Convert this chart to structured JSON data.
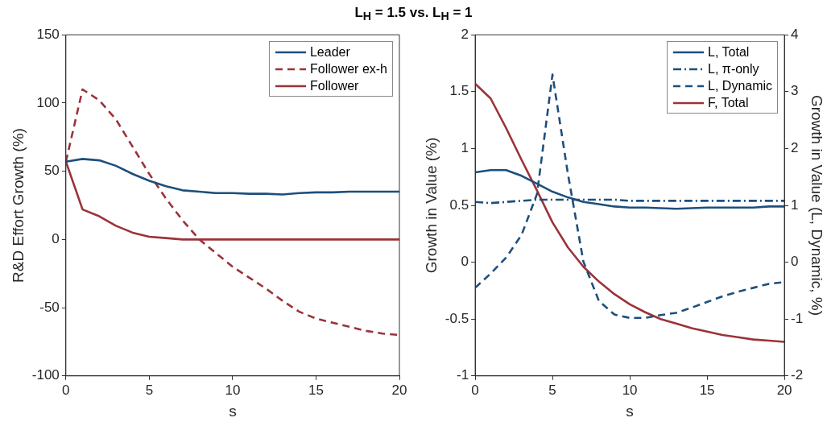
{
  "chart_data": [
    {
      "type": "line",
      "title": "L$_{H}$ = 1.5 vs. L$_{H}$ = 1",
      "xlabel": "s",
      "ylabel": "R&D Effort Growth (%)",
      "x": [
        0,
        1,
        2,
        3,
        4,
        5,
        6,
        7,
        8,
        9,
        10,
        11,
        12,
        13,
        14,
        15,
        16,
        17,
        18,
        19,
        20
      ],
      "xlim": [
        0,
        20
      ],
      "xticks": [
        0,
        5,
        10,
        15,
        20
      ],
      "ylim": [
        -100,
        150
      ],
      "yticks": [
        -100,
        -50,
        0,
        50,
        100,
        150
      ],
      "grid": false,
      "legend": "top right",
      "series": [
        {
          "name": "Leader",
          "color": "#1d4f7e",
          "line_style": "solid",
          "values": [
            57,
            59,
            58,
            54,
            48,
            43,
            39,
            36,
            35,
            34,
            34,
            33.5,
            33.5,
            33,
            34,
            34.5,
            34.5,
            35,
            35,
            35,
            35
          ]
        },
        {
          "name": "Follower ex-h",
          "color": "#9b3339",
          "line_style": "dashed",
          "values": [
            57,
            110,
            102,
            88,
            68,
            48,
            30,
            14,
            0,
            -10,
            -20,
            -28,
            -36,
            -45,
            -53,
            -58,
            -61,
            -64,
            -67,
            -69,
            -70
          ]
        },
        {
          "name": "Follower",
          "color": "#9b3339",
          "line_style": "solid",
          "values": [
            57,
            22,
            17,
            10,
            5,
            2,
            1,
            0,
            0,
            0,
            0,
            0,
            0,
            0,
            0,
            0,
            0,
            0,
            0,
            0,
            0
          ]
        }
      ]
    },
    {
      "type": "line",
      "xlabel": "s",
      "ylabel": "Growth in Value (%)",
      "y2label": "Growth in Value (L, Dynamic, %)",
      "x": [
        0,
        1,
        2,
        3,
        4,
        5,
        6,
        7,
        8,
        9,
        10,
        11,
        12,
        13,
        14,
        15,
        16,
        17,
        18,
        19,
        20
      ],
      "xlim": [
        0,
        20
      ],
      "xticks": [
        0,
        5,
        10,
        15,
        20
      ],
      "ylim": [
        -1,
        2
      ],
      "yticks": [
        -1,
        -0.5,
        0,
        0.5,
        1,
        1.5,
        2
      ],
      "y2lim": [
        -2,
        4
      ],
      "y2ticks": [
        -2,
        -1,
        0,
        1,
        2,
        3,
        4
      ],
      "grid": false,
      "legend": "top right",
      "series": [
        {
          "name": "L, Total",
          "color": "#1d4f7e",
          "line_style": "solid",
          "values": [
            0.79,
            0.81,
            0.81,
            0.76,
            0.69,
            0.62,
            0.57,
            0.53,
            0.51,
            0.49,
            0.48,
            0.48,
            0.475,
            0.47,
            0.475,
            0.48,
            0.48,
            0.48,
            0.48,
            0.49,
            0.49
          ]
        },
        {
          "name": "L, π-only",
          "color": "#1d4f7e",
          "line_style": "dashdot",
          "values": [
            0.53,
            0.52,
            0.53,
            0.54,
            0.55,
            0.55,
            0.55,
            0.55,
            0.55,
            0.55,
            0.54,
            0.54,
            0.54,
            0.54,
            0.54,
            0.54,
            0.54,
            0.54,
            0.54,
            0.54,
            0.54
          ]
        },
        {
          "name": "L, Dynamic",
          "color": "#1d4f7e",
          "line_style": "dashed",
          "axis": "y2",
          "values": [
            -0.45,
            -0.2,
            0.08,
            0.48,
            1.2,
            3.3,
            1.55,
            0.01,
            -0.68,
            -0.92,
            -0.98,
            -0.98,
            -0.93,
            -0.89,
            -0.8,
            -0.7,
            -0.6,
            -0.52,
            -0.45,
            -0.38,
            -0.35
          ]
        },
        {
          "name": "F, Total",
          "color": "#9b3339",
          "line_style": "solid",
          "values": [
            1.57,
            1.44,
            1.18,
            0.9,
            0.63,
            0.35,
            0.13,
            -0.04,
            -0.17,
            -0.28,
            -0.37,
            -0.44,
            -0.5,
            -0.54,
            -0.58,
            -0.61,
            -0.64,
            -0.66,
            -0.68,
            -0.69,
            -0.7
          ]
        }
      ]
    }
  ]
}
